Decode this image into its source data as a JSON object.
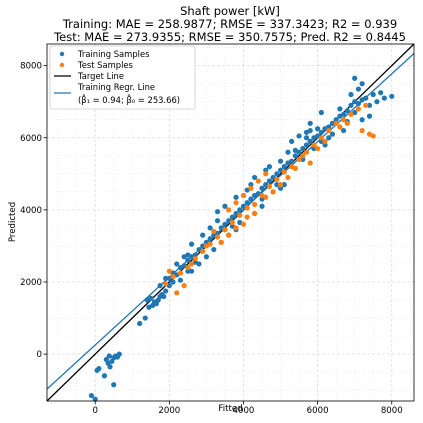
{
  "chart_data": {
    "type": "scatter",
    "title": "Shaft power [kW]",
    "subtitle_lines": [
      "Training: MAE = 258.9877; RMSE = 337.3423; R2 = 0.939",
      "Test: MAE = 273.9355; RMSE = 350.7575; Pred. R2 = 0.8445"
    ],
    "xlabel": "Fitted",
    "ylabel": "Predicted",
    "xlim": [
      -1300,
      8600
    ],
    "ylim": [
      -1300,
      8600
    ],
    "xticks": [
      0,
      2000,
      4000,
      6000,
      8000
    ],
    "yticks": [
      0,
      2000,
      4000,
      6000,
      8000
    ],
    "xtick_labels": [
      "0",
      "2000",
      "4000",
      "6000",
      "8000"
    ],
    "ytick_labels": [
      "0",
      "2000",
      "4000",
      "6000",
      "8000"
    ],
    "grid": true,
    "legend_position": "top-left",
    "legend": [
      {
        "label": "Training Samples",
        "marker": "dot",
        "color": "#1f77b4"
      },
      {
        "label": "Test Samples",
        "marker": "dot",
        "color": "#ff7f0e"
      },
      {
        "label": "Target Line",
        "marker": "line",
        "color": "#000000"
      },
      {
        "label": "Training Regr. Line",
        "marker": "line",
        "color": "#1f77b4"
      }
    ],
    "legend_regr_params": "(β̂₁ = 0.94; β̂₀ = 253.66)",
    "series": [
      {
        "name": "Training Samples",
        "color": "#1f77b4",
        "points": [
          [
            -100,
            -1150
          ],
          [
            0,
            -1250
          ],
          [
            50,
            -450
          ],
          [
            100,
            -400
          ],
          [
            300,
            -150
          ],
          [
            350,
            -250
          ],
          [
            450,
            -200
          ],
          [
            500,
            -100
          ],
          [
            550,
            -50
          ],
          [
            600,
            -80
          ],
          [
            400,
            -350
          ],
          [
            650,
            0
          ],
          [
            380,
            -50
          ],
          [
            250,
            -600
          ],
          [
            500,
            -850
          ],
          [
            1200,
            850
          ],
          [
            1350,
            1000
          ],
          [
            1450,
            1300
          ],
          [
            1550,
            1350
          ],
          [
            1600,
            1450
          ],
          [
            1700,
            1500
          ],
          [
            1750,
            1600
          ],
          [
            1800,
            1650
          ],
          [
            1900,
            1750
          ],
          [
            2000,
            1900
          ],
          [
            2100,
            2000
          ],
          [
            1500,
            1550
          ],
          [
            1650,
            1400
          ],
          [
            1400,
            1500
          ],
          [
            1900,
            2100
          ],
          [
            2000,
            2100
          ],
          [
            2100,
            2250
          ],
          [
            2200,
            2200
          ],
          [
            2300,
            2400
          ],
          [
            2400,
            2450
          ],
          [
            2500,
            2600
          ],
          [
            2600,
            2700
          ],
          [
            2700,
            2750
          ],
          [
            2800,
            2900
          ],
          [
            2900,
            3000
          ],
          [
            3000,
            3100
          ],
          [
            3100,
            3200
          ],
          [
            3200,
            3300
          ],
          [
            3300,
            3350
          ],
          [
            3400,
            3500
          ],
          [
            3500,
            3600
          ],
          [
            3600,
            3700
          ],
          [
            3700,
            3800
          ],
          [
            3800,
            3900
          ],
          [
            3900,
            4000
          ],
          [
            4000,
            4100
          ],
          [
            4100,
            4200
          ],
          [
            4200,
            4300
          ],
          [
            4300,
            4400
          ],
          [
            4400,
            4450
          ],
          [
            4500,
            4600
          ],
          [
            4600,
            4700
          ],
          [
            4700,
            4800
          ],
          [
            4800,
            4900
          ],
          [
            4900,
            5000
          ],
          [
            5000,
            5100
          ],
          [
            5100,
            5200
          ],
          [
            5200,
            5300
          ],
          [
            5300,
            5350
          ],
          [
            5400,
            5500
          ],
          [
            5500,
            5600
          ],
          [
            5600,
            5700
          ],
          [
            5700,
            5800
          ],
          [
            5800,
            5900
          ],
          [
            5900,
            6000
          ],
          [
            6000,
            6050
          ],
          [
            6100,
            6150
          ],
          [
            6200,
            6250
          ],
          [
            6300,
            6300
          ],
          [
            6400,
            6400
          ],
          [
            6500,
            6500
          ],
          [
            6600,
            6600
          ],
          [
            6700,
            6650
          ],
          [
            6800,
            6750
          ],
          [
            6900,
            6900
          ],
          [
            7000,
            7000
          ],
          [
            7100,
            6950
          ],
          [
            7200,
            7050
          ],
          [
            7300,
            7100
          ],
          [
            7400,
            6900
          ],
          [
            7600,
            7000
          ],
          [
            7800,
            7100
          ],
          [
            8000,
            7150
          ],
          [
            7500,
            7200
          ],
          [
            7700,
            7250
          ],
          [
            2600,
            3050
          ],
          [
            2900,
            3300
          ],
          [
            3100,
            3500
          ],
          [
            3300,
            3700
          ],
          [
            3500,
            3450
          ],
          [
            3600,
            3300
          ],
          [
            3700,
            3550
          ],
          [
            3800,
            4350
          ],
          [
            3900,
            3650
          ],
          [
            4000,
            4400
          ],
          [
            4200,
            4700
          ],
          [
            4300,
            4900
          ],
          [
            4100,
            4550
          ],
          [
            4600,
            5100
          ],
          [
            4700,
            5200
          ],
          [
            5000,
            5350
          ],
          [
            5200,
            5600
          ],
          [
            5400,
            5650
          ],
          [
            5100,
            4700
          ],
          [
            5600,
            5400
          ],
          [
            5700,
            6000
          ],
          [
            5800,
            6200
          ],
          [
            5900,
            5700
          ],
          [
            6000,
            6250
          ],
          [
            6100,
            5900
          ],
          [
            6200,
            5800
          ],
          [
            6300,
            6000
          ],
          [
            6400,
            6100
          ],
          [
            5700,
            6150
          ],
          [
            5500,
            6050
          ],
          [
            5300,
            5900
          ],
          [
            3000,
            2700
          ],
          [
            3200,
            2900
          ],
          [
            3400,
            3100
          ],
          [
            2800,
            2500
          ],
          [
            2500,
            2300
          ],
          [
            2300,
            2050
          ],
          [
            4500,
            4100
          ],
          [
            4800,
            4500
          ],
          [
            4900,
            4700
          ],
          [
            6700,
            6200
          ],
          [
            6800,
            6450
          ],
          [
            7200,
            6500
          ],
          [
            7000,
            6700
          ],
          [
            7400,
            6600
          ],
          [
            1750,
            1900
          ],
          [
            1850,
            1600
          ],
          [
            2200,
            2500
          ],
          [
            2400,
            2700
          ],
          [
            6600,
            6800
          ],
          [
            6900,
            7200
          ],
          [
            7200,
            7500
          ],
          [
            7100,
            7350
          ],
          [
            7000,
            7650
          ],
          [
            6100,
            6700
          ],
          [
            5800,
            6400
          ],
          [
            3300,
            3950
          ],
          [
            3500,
            4100
          ],
          [
            4300,
            3900
          ],
          [
            4500,
            4300
          ],
          [
            2600,
            2300
          ],
          [
            2700,
            2550
          ],
          [
            2500,
            2750
          ],
          [
            3800,
            3450
          ],
          [
            5000,
            4600
          ]
        ]
      },
      {
        "name": "Test Samples",
        "color": "#ff7f0e",
        "points": [
          [
            1900,
            1950
          ],
          [
            2100,
            2150
          ],
          [
            2300,
            2250
          ],
          [
            2500,
            2400
          ],
          [
            2700,
            2650
          ],
          [
            2900,
            2850
          ],
          [
            3100,
            3050
          ],
          [
            3300,
            3250
          ],
          [
            3500,
            3450
          ],
          [
            3700,
            3650
          ],
          [
            3900,
            3850
          ],
          [
            4100,
            4050
          ],
          [
            4300,
            4150
          ],
          [
            4500,
            4400
          ],
          [
            4700,
            4650
          ],
          [
            4900,
            4850
          ],
          [
            5100,
            5050
          ],
          [
            5300,
            5200
          ],
          [
            5500,
            5400
          ],
          [
            5700,
            5600
          ],
          [
            5900,
            5800
          ],
          [
            6100,
            6000
          ],
          [
            6300,
            6200
          ],
          [
            6500,
            6400
          ],
          [
            6700,
            6500
          ],
          [
            6900,
            6650
          ],
          [
            7100,
            6800
          ],
          [
            7300,
            6900
          ],
          [
            7500,
            6050
          ],
          [
            7400,
            6100
          ],
          [
            7200,
            6200
          ],
          [
            3600,
            4000
          ],
          [
            3800,
            4200
          ],
          [
            4000,
            4400
          ],
          [
            4200,
            4600
          ],
          [
            4400,
            4800
          ],
          [
            4600,
            5000
          ],
          [
            4000,
            3600
          ],
          [
            3800,
            3500
          ],
          [
            3600,
            3300
          ],
          [
            3400,
            3100
          ],
          [
            4800,
            4500
          ],
          [
            5000,
            4700
          ],
          [
            5200,
            4900
          ],
          [
            5400,
            5150
          ],
          [
            2200,
            1700
          ],
          [
            2400,
            1900
          ],
          [
            2000,
            2300
          ],
          [
            2600,
            2500
          ],
          [
            3000,
            3000
          ],
          [
            4300,
            3900
          ],
          [
            4600,
            4350
          ],
          [
            5600,
            5500
          ],
          [
            5800,
            5300
          ],
          [
            6000,
            5700
          ],
          [
            6200,
            5900
          ],
          [
            6600,
            6300
          ],
          [
            6800,
            6400
          ],
          [
            3200,
            3400
          ],
          [
            4100,
            3800
          ]
        ]
      }
    ],
    "lines": [
      {
        "name": "Target Line",
        "color": "#000000",
        "slope": 1,
        "intercept": 0
      },
      {
        "name": "Training Regr. Line",
        "color": "#1f77b4",
        "slope": 0.94,
        "intercept": 253.66
      }
    ]
  }
}
